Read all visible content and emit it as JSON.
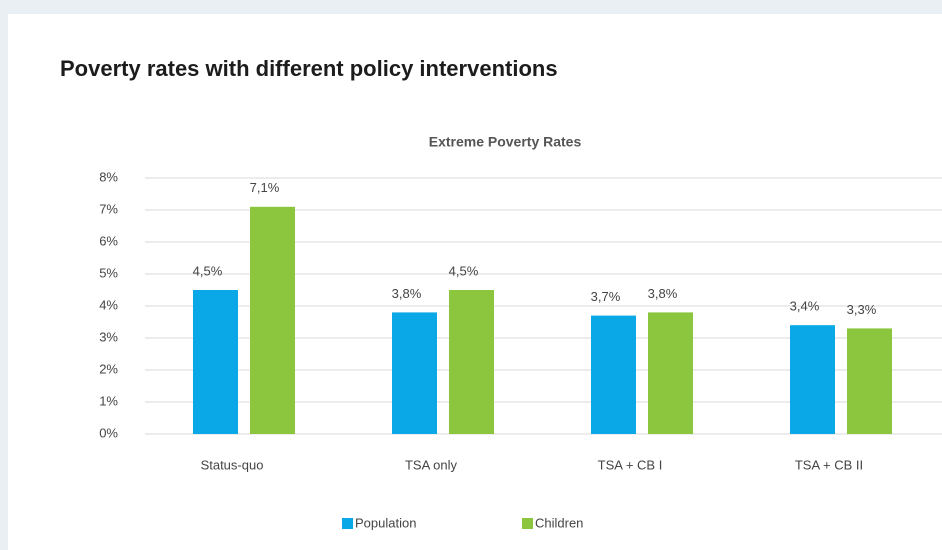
{
  "heading": "Poverty rates with different policy interventions",
  "chart_data": {
    "type": "bar",
    "title": "Extreme Poverty Rates",
    "categories": [
      "Status-quo",
      "TSA only",
      "TSA + CB I",
      "TSA + CB II"
    ],
    "series": [
      {
        "name": "Population",
        "color": "#0aa8e6",
        "values": [
          4.5,
          3.8,
          3.7,
          3.4
        ],
        "value_labels": [
          "4,5%",
          "3,8%",
          "3,7%",
          "3,4%"
        ]
      },
      {
        "name": "Children",
        "color": "#8cc63f",
        "values": [
          7.1,
          4.5,
          3.8,
          3.3
        ],
        "value_labels": [
          "7,1%",
          "4,5%",
          "3,8%",
          "3,3%"
        ]
      }
    ],
    "ylim": [
      0,
      8
    ],
    "yticks": [
      {
        "value": 0,
        "label": "0%"
      },
      {
        "value": 1,
        "label": "1%"
      },
      {
        "value": 2,
        "label": "2%"
      },
      {
        "value": 3,
        "label": "3%"
      },
      {
        "value": 4,
        "label": "4%"
      },
      {
        "value": 5,
        "label": "5%"
      },
      {
        "value": 6,
        "label": "6%"
      },
      {
        "value": 7,
        "label": "7%"
      },
      {
        "value": 8,
        "label": "8%"
      }
    ],
    "grid": true,
    "legend": "bottom"
  }
}
